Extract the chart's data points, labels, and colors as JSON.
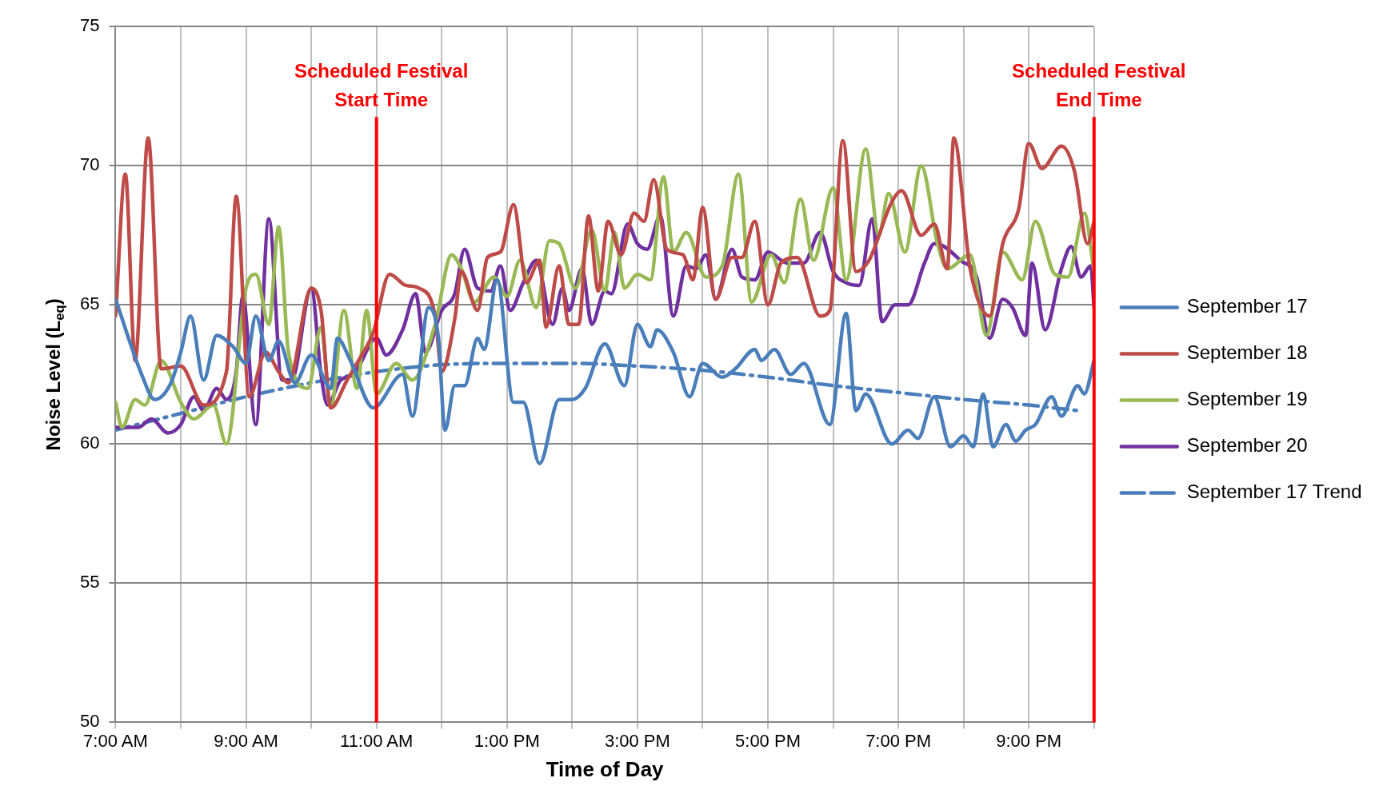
{
  "chart_data": {
    "type": "line",
    "xlabel": "Time of Day",
    "ylabel": "Noise Level (L$_{eq}$)",
    "xlim": [
      7,
      22
    ],
    "xticks": [
      {
        "value": 7,
        "label": "7:00 AM"
      },
      {
        "value": 8,
        "label": null
      },
      {
        "value": 9,
        "label": "9:00 AM"
      },
      {
        "value": 10,
        "label": null
      },
      {
        "value": 11,
        "label": "11:00 AM"
      },
      {
        "value": 12,
        "label": null
      },
      {
        "value": 13,
        "label": "1:00 PM"
      },
      {
        "value": 14,
        "label": null
      },
      {
        "value": 15,
        "label": "3:00 PM"
      },
      {
        "value": 16,
        "label": null
      },
      {
        "value": 17,
        "label": "5:00 PM"
      },
      {
        "value": 18,
        "label": null
      },
      {
        "value": 19,
        "label": "7:00 PM"
      },
      {
        "value": 20,
        "label": null
      },
      {
        "value": 21,
        "label": "9:00 PM"
      },
      {
        "value": 22,
        "label": null
      }
    ],
    "ylim": [
      50,
      75
    ],
    "yticks": [
      50,
      55,
      60,
      65,
      70,
      75
    ],
    "grid": true,
    "legend": "right",
    "marker": "none",
    "ref_lines": [
      {
        "axis": "x",
        "value": 11,
        "label": "Scheduled Festival Start Time",
        "color": "#ff0000"
      },
      {
        "axis": "x",
        "value": 22,
        "label": "Scheduled Festival End Time",
        "color": "#ff0000"
      }
    ],
    "series": [
      {
        "name": "September 17",
        "color": "#4a7ebb",
        "line_style": "solid",
        "x": [
          7.0,
          7.4,
          7.6,
          7.85,
          8.0,
          8.15,
          8.35,
          8.55,
          8.8,
          9.0,
          9.15,
          9.35,
          9.5,
          9.75,
          10.0,
          10.3,
          10.4,
          10.6,
          10.95,
          11.4,
          11.55,
          11.8,
          11.95,
          12.05,
          12.2,
          12.35,
          12.55,
          12.65,
          12.85,
          13.1,
          13.25,
          13.5,
          13.8,
          14.0,
          14.2,
          14.5,
          14.8,
          15.0,
          15.2,
          15.3,
          15.55,
          15.8,
          16.0,
          16.3,
          16.5,
          16.8,
          16.9,
          17.1,
          17.35,
          17.55,
          17.95,
          18.2,
          18.35,
          18.5,
          18.9,
          19.15,
          19.3,
          19.55,
          19.8,
          20.0,
          20.15,
          20.3,
          20.45,
          20.65,
          20.8,
          20.95,
          21.1,
          21.35,
          21.5,
          21.75,
          21.85,
          22.0
        ],
        "values": [
          65.2,
          62.5,
          61.6,
          62.2,
          63.3,
          64.6,
          62.3,
          63.9,
          63.5,
          62.9,
          64.6,
          63.0,
          63.7,
          62.2,
          63.2,
          62.0,
          63.8,
          63.0,
          61.3,
          62.5,
          61.0,
          64.9,
          63.8,
          60.5,
          62.1,
          62.1,
          63.8,
          63.4,
          65.9,
          61.5,
          61.5,
          59.3,
          61.6,
          61.6,
          62.0,
          63.6,
          62.1,
          64.3,
          63.5,
          64.1,
          63.3,
          61.7,
          62.9,
          62.4,
          62.7,
          63.4,
          63.0,
          63.4,
          62.5,
          62.9,
          60.7,
          64.7,
          61.2,
          61.8,
          60.0,
          60.5,
          60.2,
          61.7,
          59.9,
          60.3,
          59.9,
          61.8,
          59.9,
          60.7,
          60.1,
          60.5,
          60.7,
          61.7,
          61.0,
          62.1,
          61.8,
          63.0
        ]
      },
      {
        "name": "September 18",
        "color": "#be4b48",
        "line_style": "solid",
        "x": [
          7.0,
          7.15,
          7.3,
          7.5,
          7.7,
          8.0,
          8.35,
          8.7,
          8.85,
          9.05,
          9.3,
          9.5,
          9.65,
          10.0,
          10.15,
          10.3,
          10.55,
          10.75,
          10.95,
          11.2,
          11.45,
          11.65,
          11.9,
          12.0,
          12.2,
          12.3,
          12.55,
          12.7,
          12.9,
          13.1,
          13.3,
          13.5,
          13.6,
          13.8,
          13.95,
          14.1,
          14.25,
          14.4,
          14.55,
          14.75,
          14.95,
          15.1,
          15.25,
          15.45,
          15.7,
          15.85,
          16.0,
          16.2,
          16.45,
          16.6,
          16.8,
          17.0,
          17.2,
          17.45,
          17.8,
          17.95,
          18.15,
          18.35,
          18.55,
          18.9,
          19.05,
          19.35,
          19.55,
          19.75,
          19.85,
          20.1,
          20.4,
          20.6,
          20.85,
          21.0,
          21.2,
          21.5,
          21.7,
          21.9,
          22.0
        ],
        "values": [
          64.6,
          69.7,
          63.0,
          71.0,
          62.7,
          62.8,
          61.4,
          62.6,
          68.9,
          61.7,
          63.3,
          62.6,
          62.2,
          65.6,
          64.8,
          61.3,
          62.3,
          63.1,
          64.0,
          66.1,
          65.7,
          65.6,
          64.6,
          62.6,
          64.5,
          66.2,
          64.8,
          66.7,
          66.9,
          68.6,
          65.8,
          66.6,
          64.2,
          66.4,
          64.3,
          64.3,
          68.2,
          65.5,
          68.0,
          66.8,
          68.3,
          68.0,
          69.5,
          67.0,
          66.8,
          65.9,
          68.5,
          65.2,
          66.7,
          66.7,
          68.0,
          65.0,
          66.5,
          66.7,
          64.6,
          64.8,
          70.9,
          66.2,
          66.6,
          68.7,
          69.1,
          67.5,
          67.9,
          66.3,
          71.0,
          66.3,
          64.6,
          67.2,
          68.5,
          70.8,
          69.9,
          70.7,
          69.8,
          67.2,
          68.0
        ]
      },
      {
        "name": "September 19",
        "color": "#98b954",
        "line_style": "solid",
        "x": [
          7.0,
          7.1,
          7.3,
          7.45,
          7.7,
          8.0,
          8.2,
          8.5,
          8.7,
          9.0,
          9.15,
          9.35,
          9.5,
          9.65,
          9.95,
          10.15,
          10.3,
          10.5,
          10.7,
          10.85,
          11.0,
          11.3,
          11.55,
          11.9,
          12.15,
          12.3,
          12.5,
          12.8,
          13.0,
          13.2,
          13.45,
          13.65,
          13.8,
          14.05,
          14.3,
          14.5,
          14.65,
          14.8,
          15.0,
          15.2,
          15.4,
          15.55,
          15.75,
          16.05,
          16.3,
          16.55,
          16.75,
          17.05,
          17.25,
          17.5,
          17.7,
          18.0,
          18.2,
          18.5,
          18.7,
          18.85,
          19.1,
          19.35,
          19.6,
          19.75,
          20.1,
          20.35,
          20.6,
          20.9,
          21.1,
          21.4,
          21.6,
          21.85,
          22.0
        ],
        "values": [
          61.5,
          60.6,
          61.6,
          61.4,
          63.0,
          61.5,
          60.9,
          61.4,
          60.0,
          65.6,
          66.1,
          64.3,
          67.8,
          63.3,
          62.0,
          64.2,
          61.3,
          64.8,
          62.0,
          64.8,
          61.8,
          62.9,
          62.3,
          64.3,
          66.8,
          66.3,
          65.1,
          66.0,
          65.3,
          66.6,
          64.9,
          67.3,
          67.2,
          65.6,
          67.7,
          65.5,
          67.6,
          65.6,
          66.1,
          65.9,
          69.6,
          66.9,
          67.6,
          66.0,
          66.4,
          69.7,
          65.1,
          66.8,
          65.8,
          68.8,
          66.6,
          69.2,
          65.9,
          70.6,
          67.5,
          69.0,
          66.9,
          70.0,
          67.2,
          66.3,
          66.8,
          63.9,
          66.9,
          65.9,
          68.0,
          66.1,
          66.0,
          68.3,
          66.2
        ]
      },
      {
        "name": "September 20",
        "color": "#7030a0",
        "line_style": "solid",
        "x": [
          7.0,
          7.35,
          7.55,
          7.8,
          8.0,
          8.2,
          8.35,
          8.55,
          8.7,
          8.85,
          8.95,
          9.15,
          9.35,
          9.55,
          9.7,
          10.0,
          10.15,
          10.25,
          10.45,
          10.65,
          11.0,
          11.15,
          11.4,
          11.6,
          11.75,
          12.0,
          12.2,
          12.35,
          12.55,
          12.75,
          12.9,
          13.05,
          13.25,
          13.45,
          13.7,
          13.85,
          13.95,
          14.15,
          14.3,
          14.5,
          14.6,
          14.85,
          15.0,
          15.15,
          15.35,
          15.55,
          15.75,
          15.9,
          16.05,
          16.2,
          16.45,
          16.6,
          16.8,
          17.0,
          17.3,
          17.55,
          17.8,
          18.0,
          18.2,
          18.4,
          18.6,
          18.75,
          18.95,
          19.15,
          19.4,
          19.55,
          19.7,
          19.95,
          20.2,
          20.4,
          20.6,
          20.75,
          20.95,
          21.05,
          21.25,
          21.5,
          21.65,
          21.8,
          21.95,
          22.0
        ],
        "values": [
          60.6,
          60.6,
          60.9,
          60.4,
          60.7,
          61.7,
          61.2,
          62.0,
          61.6,
          62.6,
          65.3,
          60.7,
          68.1,
          62.3,
          62.3,
          65.6,
          62.5,
          61.4,
          62.3,
          62.5,
          63.8,
          63.2,
          64.1,
          65.4,
          63.3,
          64.8,
          65.4,
          67.0,
          65.6,
          65.5,
          66.4,
          64.8,
          65.8,
          66.6,
          64.3,
          65.6,
          64.8,
          66.3,
          64.3,
          65.5,
          65.4,
          67.9,
          67.2,
          67.0,
          68.2,
          64.6,
          66.4,
          66.3,
          66.8,
          65.2,
          67.0,
          66.0,
          65.9,
          66.9,
          66.5,
          66.5,
          67.6,
          66.2,
          65.8,
          65.7,
          68.1,
          64.4,
          65.0,
          65.0,
          66.5,
          67.2,
          67.1,
          66.6,
          66.0,
          63.8,
          65.2,
          64.9,
          63.9,
          66.5,
          64.1,
          66.3,
          67.1,
          66.0,
          66.4,
          64.9
        ]
      },
      {
        "name": "September 17 Trend",
        "color": "#4a7ebb",
        "line_style": "dashed",
        "x": [
          7.0,
          8.0,
          9.0,
          10.0,
          11.0,
          12.0,
          13.0,
          14.0,
          15.0,
          16.0,
          17.0,
          18.0,
          19.0,
          20.0,
          21.0,
          21.75
        ],
        "values": [
          60.5,
          61.1,
          61.7,
          62.2,
          62.6,
          62.85,
          62.9,
          62.9,
          62.8,
          62.65,
          62.4,
          62.1,
          61.85,
          61.6,
          61.4,
          61.2
        ]
      }
    ]
  }
}
